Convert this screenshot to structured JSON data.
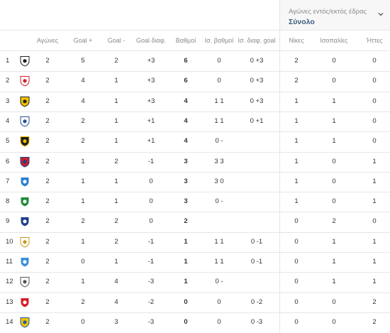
{
  "context": {
    "label": "Αγώνες εντός/εκτός έδρας",
    "value": "Σύνολο",
    "toggle_icon": "chevron-down-icon"
  },
  "headers": {
    "played": "Αγώνες",
    "goals_for": "Goal +",
    "goals_against": "Goal -",
    "goal_diff": "Goal διαφ.",
    "points": "Βαθμοί",
    "h2h_points": "Ισ. βαθμοί",
    "h2h_goal_diff": "Ισ. διαφ. goal",
    "wins": "Νίκες",
    "draws": "Ισοπαλίες",
    "losses": "Ήττες"
  },
  "rows": [
    {
      "pos": "1",
      "crest": {
        "icon": "club-crest-icon",
        "bg": "#ffffff",
        "fg": "#222222"
      },
      "played": "2",
      "gf": "5",
      "ga": "2",
      "gd": "+3",
      "pts": "6",
      "h2h_pts": "0",
      "h2h_gd": "0 +3",
      "w": "2",
      "d": "0",
      "l": "0"
    },
    {
      "pos": "2",
      "crest": {
        "icon": "club-crest-icon",
        "bg": "#ffffff",
        "fg": "#d4202a"
      },
      "played": "2",
      "gf": "4",
      "ga": "1",
      "gd": "+3",
      "pts": "6",
      "h2h_pts": "0",
      "h2h_gd": "0 +3",
      "w": "2",
      "d": "0",
      "l": "0"
    },
    {
      "pos": "3",
      "crest": {
        "icon": "club-crest-icon",
        "bg": "#f2c200",
        "fg": "#222222"
      },
      "played": "2",
      "gf": "4",
      "ga": "1",
      "gd": "+3",
      "pts": "4",
      "h2h_pts": "1 1",
      "h2h_gd": "0 +3",
      "w": "1",
      "d": "1",
      "l": "0"
    },
    {
      "pos": "4",
      "crest": {
        "icon": "club-crest-icon",
        "bg": "#ffffff",
        "fg": "#2a4f9a"
      },
      "played": "2",
      "gf": "2",
      "ga": "1",
      "gd": "+1",
      "pts": "4",
      "h2h_pts": "1 1",
      "h2h_gd": "0 +1",
      "w": "1",
      "d": "1",
      "l": "0"
    },
    {
      "pos": "5",
      "crest": {
        "icon": "club-crest-icon",
        "bg": "#1d1d1d",
        "fg": "#f2c200"
      },
      "played": "2",
      "gf": "2",
      "ga": "1",
      "gd": "+1",
      "pts": "4",
      "h2h_pts": "0 -",
      "h2h_gd": "",
      "w": "1",
      "d": "1",
      "l": "0"
    },
    {
      "pos": "6",
      "crest": {
        "icon": "club-crest-icon",
        "bg": "#c8202a",
        "fg": "#1f3f8a"
      },
      "played": "2",
      "gf": "1",
      "ga": "2",
      "gd": "-1",
      "pts": "3",
      "h2h_pts": "3 3",
      "h2h_gd": "",
      "w": "1",
      "d": "0",
      "l": "1"
    },
    {
      "pos": "7",
      "crest": {
        "icon": "club-crest-icon",
        "bg": "#2a7fd0",
        "fg": "#ffffff"
      },
      "played": "2",
      "gf": "1",
      "ga": "1",
      "gd": "0",
      "pts": "3",
      "h2h_pts": "3 0",
      "h2h_gd": "",
      "w": "1",
      "d": "0",
      "l": "1"
    },
    {
      "pos": "8",
      "crest": {
        "icon": "club-crest-icon",
        "bg": "#1f8a3a",
        "fg": "#ffffff"
      },
      "played": "2",
      "gf": "1",
      "ga": "1",
      "gd": "0",
      "pts": "3",
      "h2h_pts": "0 -",
      "h2h_gd": "",
      "w": "1",
      "d": "0",
      "l": "1"
    },
    {
      "pos": "9",
      "crest": {
        "icon": "club-crest-icon",
        "bg": "#1f3f8a",
        "fg": "#ffffff"
      },
      "played": "2",
      "gf": "2",
      "ga": "2",
      "gd": "0",
      "pts": "2",
      "h2h_pts": "",
      "h2h_gd": "",
      "w": "0",
      "d": "2",
      "l": "0"
    },
    {
      "pos": "10",
      "crest": {
        "icon": "club-crest-icon",
        "bg": "#ffffff",
        "fg": "#c79a1d"
      },
      "played": "2",
      "gf": "1",
      "ga": "2",
      "gd": "-1",
      "pts": "1",
      "h2h_pts": "1 1",
      "h2h_gd": "0 -1",
      "w": "0",
      "d": "1",
      "l": "1"
    },
    {
      "pos": "11",
      "crest": {
        "icon": "club-crest-icon",
        "bg": "#3b8fd9",
        "fg": "#ffffff"
      },
      "played": "2",
      "gf": "0",
      "ga": "1",
      "gd": "-1",
      "pts": "1",
      "h2h_pts": "1 1",
      "h2h_gd": "0 -1",
      "w": "0",
      "d": "1",
      "l": "1"
    },
    {
      "pos": "12",
      "crest": {
        "icon": "club-crest-icon",
        "bg": "#ffffff",
        "fg": "#555555"
      },
      "played": "2",
      "gf": "1",
      "ga": "4",
      "gd": "-3",
      "pts": "1",
      "h2h_pts": "0 -",
      "h2h_gd": "",
      "w": "0",
      "d": "1",
      "l": "1"
    },
    {
      "pos": "13",
      "crest": {
        "icon": "club-crest-icon",
        "bg": "#d4202a",
        "fg": "#ffffff"
      },
      "played": "2",
      "gf": "2",
      "ga": "4",
      "gd": "-2",
      "pts": "0",
      "h2h_pts": "0",
      "h2h_gd": "0 -2",
      "w": "0",
      "d": "0",
      "l": "2"
    },
    {
      "pos": "14",
      "crest": {
        "icon": "club-crest-icon",
        "bg": "#f2c200",
        "fg": "#1f5fa8"
      },
      "played": "2",
      "gf": "0",
      "ga": "3",
      "gd": "-3",
      "pts": "0",
      "h2h_pts": "0",
      "h2h_gd": "0 -3",
      "w": "0",
      "d": "0",
      "l": "2"
    }
  ]
}
